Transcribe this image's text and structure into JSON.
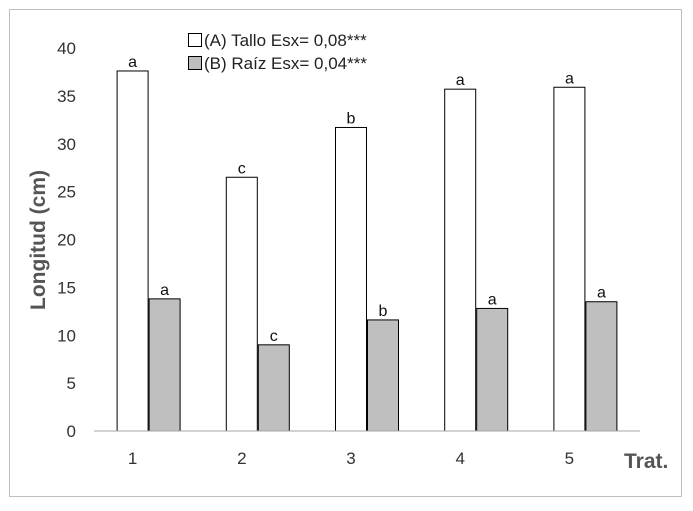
{
  "chart_data": {
    "type": "bar",
    "categories": [
      "1",
      "2",
      "3",
      "4",
      "5"
    ],
    "series": [
      {
        "name": "(A) Tallo Esx= 0,08***",
        "values": [
          37.6,
          26.5,
          31.7,
          35.7,
          35.9
        ],
        "labels": [
          "a",
          "c",
          "b",
          "a",
          "a"
        ],
        "color": "#ffffff"
      },
      {
        "name": "(B) Raíz Esx= 0,04***",
        "values": [
          13.8,
          9.0,
          11.6,
          12.8,
          13.5
        ],
        "labels": [
          "a",
          "c",
          "b",
          "a",
          "a"
        ],
        "color": "#bfbfbf"
      }
    ],
    "yticks": [
      "0",
      "5",
      "10",
      "15",
      "20",
      "25",
      "30",
      "35",
      "40"
    ],
    "ylim": [
      0,
      40
    ],
    "xlabel": "Trat.",
    "ylabel": "Longitud (cm)",
    "grid": false,
    "legend_position": "top-center",
    "bar_stroke": "#000000",
    "axis_color": "#a6a6a6"
  }
}
